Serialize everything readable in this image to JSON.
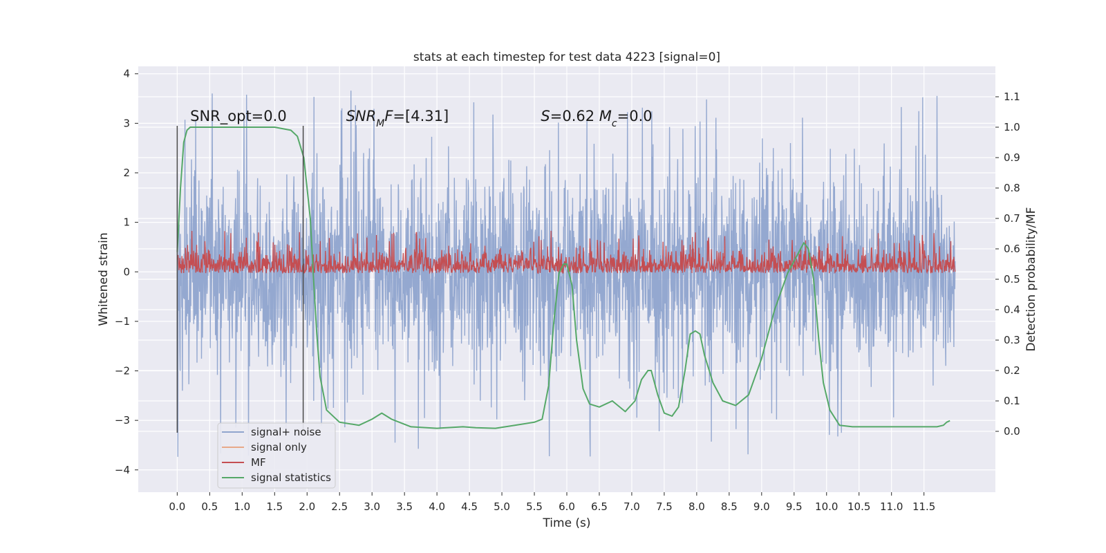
{
  "chart_data": {
    "type": "line",
    "title": "stats at each timestep for test data 4223 [signal=0]",
    "xlabel": "Time (s)",
    "ylabel_left": "Whitened strain",
    "ylabel_right": "Detection probability/MF",
    "xlim": [
      -0.6,
      12.6
    ],
    "ylim_left": [
      -4.45,
      4.15
    ],
    "ylim_right": [
      -0.2,
      1.2
    ],
    "x_ticks": [
      0.0,
      0.5,
      1.0,
      1.5,
      2.0,
      2.5,
      3.0,
      3.5,
      4.0,
      4.5,
      5.0,
      5.5,
      6.0,
      6.5,
      7.0,
      7.5,
      8.0,
      8.5,
      9.0,
      9.5,
      10.0,
      10.5,
      11.0,
      11.5
    ],
    "x_tick_labels": [
      "0.0",
      "0.5",
      "1.0",
      "1.5",
      "2.0",
      "2.5",
      "3.0",
      "3.5",
      "4.0",
      "4.5",
      "5.0",
      "5.5",
      "6.0",
      "6.5",
      "7.0",
      "7.5",
      "8.0",
      "8.5",
      "9.0",
      "9.5",
      "10.0",
      "10.5",
      "11.0",
      "11.5"
    ],
    "y_left_ticks": [
      -4,
      -3,
      -2,
      -1,
      0,
      1,
      2,
      3,
      4
    ],
    "y_left_tick_labels": [
      "−4",
      "−3",
      "−2",
      "−1",
      "0",
      "1",
      "2",
      "3",
      "4"
    ],
    "y_right_ticks": [
      0.0,
      0.1,
      0.2,
      0.3,
      0.4,
      0.5,
      0.6,
      0.7,
      0.8,
      0.9,
      1.0,
      1.1
    ],
    "y_right_tick_labels": [
      "0.0",
      "0.1",
      "0.2",
      "0.3",
      "0.4",
      "0.5",
      "0.6",
      "0.7",
      "0.8",
      "0.9",
      "1.0",
      "1.1"
    ],
    "grid": true,
    "legend_position": "bottom-left",
    "vertical_markers": [
      {
        "x": 0.0,
        "ymin": -3.25,
        "ymax": 2.95
      },
      {
        "x": 1.94,
        "ymin": -3.25,
        "ymax": 2.95
      }
    ],
    "annotations": [
      {
        "x": 0.2,
        "y": 3.05,
        "parts": [
          {
            "t": "SNR_opt=0.0"
          }
        ]
      },
      {
        "x": 2.6,
        "y": 3.05,
        "parts": [
          {
            "t": "SNR",
            "italic": true
          },
          {
            "t": "M",
            "italic": true,
            "sub": true
          },
          {
            "t": "F",
            "italic": true
          },
          {
            "t": "=[4.31]"
          }
        ]
      },
      {
        "x": 5.6,
        "y": 3.05,
        "parts": [
          {
            "t": "S",
            "italic": true
          },
          {
            "t": "=0.62   "
          },
          {
            "t": "M",
            "italic": true
          },
          {
            "t": "c",
            "italic": true,
            "sub": true
          },
          {
            "t": "=0.0"
          }
        ]
      }
    ],
    "series": [
      {
        "name": "signal+ noise",
        "axis": "left",
        "color": "#8fa4cd",
        "kind": "noise",
        "x_range": [
          0.0,
          11.98
        ],
        "amplitude_typical": 1.6,
        "amplitude_peak": 3.8
      },
      {
        "name": "signal only",
        "axis": "left",
        "color": "#e8a888",
        "kind": "flat",
        "values": []
      },
      {
        "name": "MF",
        "axis": "right",
        "color": "#c44e52",
        "kind": "noise",
        "x_range": [
          0.0,
          11.98
        ],
        "baseline": 0.52,
        "range": [
          0.5,
          0.67
        ]
      },
      {
        "name": "signal statistics",
        "axis": "right",
        "color": "#55a868",
        "kind": "line",
        "x": [
          0.0,
          0.05,
          0.1,
          0.15,
          0.2,
          0.3,
          0.5,
          1.0,
          1.5,
          1.75,
          1.85,
          1.95,
          2.05,
          2.1,
          2.15,
          2.2,
          2.3,
          2.5,
          2.8,
          3.0,
          3.15,
          3.3,
          3.6,
          4.0,
          4.4,
          4.6,
          4.9,
          5.2,
          5.5,
          5.62,
          5.72,
          5.8,
          5.88,
          5.95,
          6.0,
          6.08,
          6.15,
          6.25,
          6.35,
          6.5,
          6.7,
          6.9,
          7.05,
          7.15,
          7.25,
          7.3,
          7.4,
          7.5,
          7.62,
          7.72,
          7.82,
          7.9,
          7.98,
          8.05,
          8.12,
          8.25,
          8.4,
          8.6,
          8.8,
          9.0,
          9.2,
          9.4,
          9.55,
          9.65,
          9.72,
          9.8,
          9.88,
          9.95,
          10.05,
          10.2,
          10.4,
          10.8,
          11.2,
          11.5,
          11.7,
          11.8,
          11.85,
          11.9
        ],
        "y": [
          0.59,
          0.8,
          0.95,
          0.99,
          1.0,
          1.0,
          1.0,
          1.0,
          1.0,
          0.99,
          0.97,
          0.9,
          0.7,
          0.5,
          0.32,
          0.18,
          0.07,
          0.03,
          0.02,
          0.04,
          0.06,
          0.04,
          0.015,
          0.01,
          0.015,
          0.012,
          0.01,
          0.02,
          0.03,
          0.04,
          0.15,
          0.36,
          0.52,
          0.55,
          0.55,
          0.48,
          0.3,
          0.14,
          0.09,
          0.08,
          0.1,
          0.065,
          0.1,
          0.17,
          0.2,
          0.2,
          0.12,
          0.06,
          0.05,
          0.08,
          0.2,
          0.32,
          0.33,
          0.32,
          0.25,
          0.16,
          0.1,
          0.085,
          0.12,
          0.24,
          0.4,
          0.52,
          0.58,
          0.62,
          0.6,
          0.5,
          0.3,
          0.16,
          0.07,
          0.02,
          0.015,
          0.015,
          0.015,
          0.015,
          0.015,
          0.02,
          0.03,
          0.035
        ]
      }
    ]
  }
}
